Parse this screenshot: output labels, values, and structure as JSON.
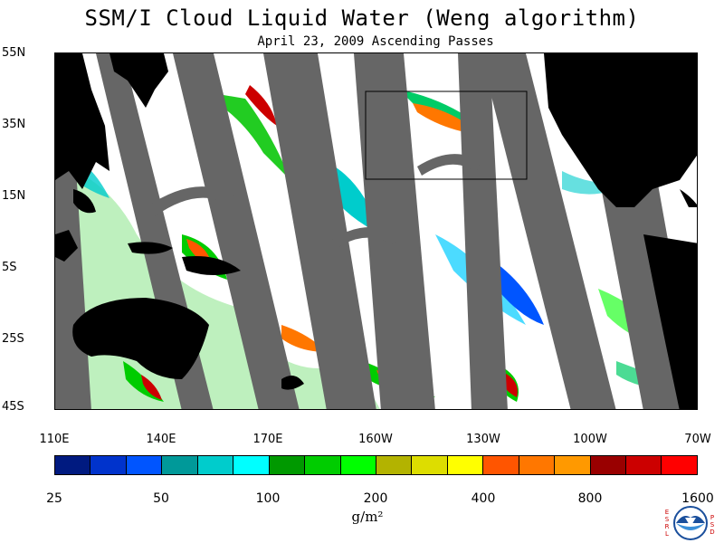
{
  "title": "SSM/I Cloud Liquid Water (Weng algorithm)",
  "subtitle": "April 23, 2009  Ascending Passes",
  "lat_labels": [
    "55N",
    "35N",
    "15N",
    "5S",
    "25S",
    "45S"
  ],
  "lon_labels": [
    "110E",
    "140E",
    "170E",
    "160W",
    "130W",
    "100W",
    "70W"
  ],
  "colorbar": {
    "colors": [
      "#001a80",
      "#0033cc",
      "#0055ff",
      "#009999",
      "#00cccc",
      "#00ffff",
      "#009900",
      "#00cc00",
      "#00ff00",
      "#b3b300",
      "#dddd00",
      "#ffff00",
      "#ff5500",
      "#ff7700",
      "#ff9900",
      "#990000",
      "#cc0000",
      "#ff0000"
    ],
    "labels": [
      "25",
      "50",
      "100",
      "200",
      "400",
      "800",
      "1600"
    ],
    "units": "g/m²"
  },
  "colors": {
    "land": "#000000",
    "no_data_swath": "#666666",
    "clear_ocean": "#ffffff"
  },
  "logo": {
    "left_text": "ESRL",
    "right_text": "PSD",
    "icon": "noaa-logo"
  }
}
